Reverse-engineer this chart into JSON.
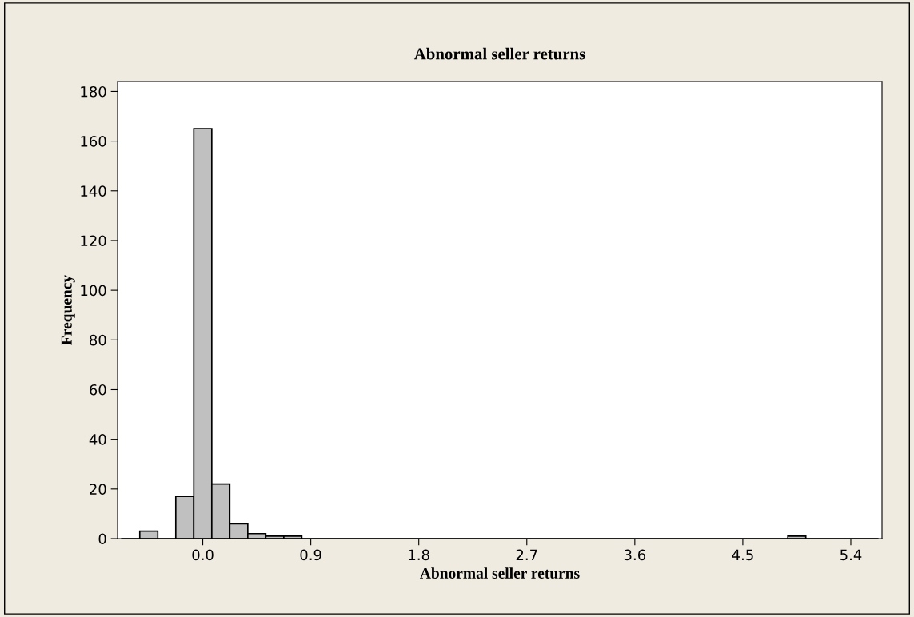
{
  "chart_data": {
    "type": "histogram",
    "title": "Abnormal seller returns",
    "xlabel": "Abnormal seller returns",
    "ylabel": "Frequency",
    "bins": [
      -0.675,
      -0.525,
      -0.375,
      -0.225,
      -0.075,
      0.075,
      0.225,
      0.375,
      0.525,
      0.675,
      0.825,
      0.975,
      1.125,
      1.275,
      1.425,
      1.575,
      1.725,
      1.875,
      2.025,
      2.175,
      2.325,
      2.475,
      2.625,
      2.775,
      2.925,
      3.075,
      3.225,
      3.375,
      3.525,
      3.675,
      3.825,
      3.975,
      4.125,
      4.275,
      4.425,
      4.575,
      4.725,
      4.875,
      5.025,
      5.175,
      5.325,
      5.475,
      5.625
    ],
    "values": [
      0,
      3,
      0,
      17,
      165,
      22,
      6,
      2,
      1,
      1,
      0,
      0,
      0,
      0,
      0,
      0,
      0,
      0,
      0,
      0,
      0,
      0,
      0,
      0,
      0,
      0,
      0,
      0,
      0,
      0,
      0,
      0,
      0,
      0,
      0,
      0,
      0,
      1,
      0,
      0,
      0,
      0
    ],
    "color": "#c0c0c0",
    "xlim": [
      -0.71,
      5.66
    ],
    "ylim": [
      0,
      184
    ],
    "xticks": [
      {
        "value": 0,
        "label": "0.0"
      },
      0.9,
      1.8,
      2.7,
      3.6,
      4.5,
      5.4
    ],
    "yticks": [
      0,
      20,
      40,
      60,
      80,
      100,
      120,
      140,
      160,
      180
    ],
    "grid": false
  }
}
